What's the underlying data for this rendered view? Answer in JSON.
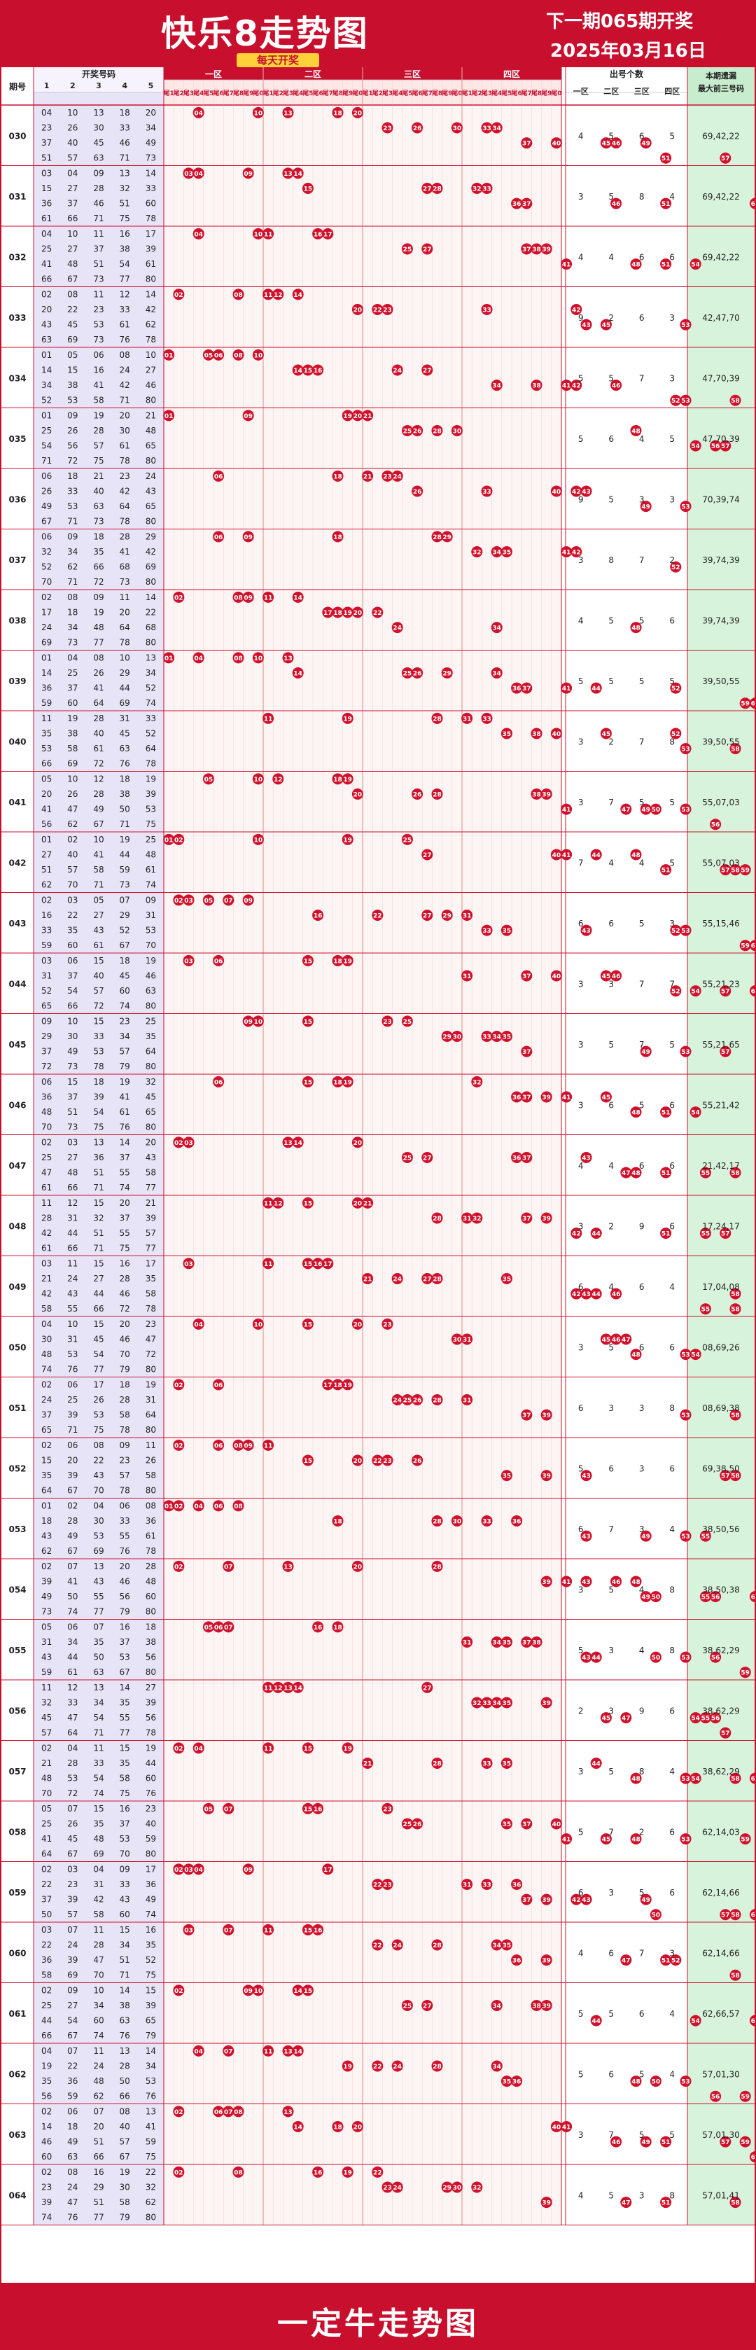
{
  "header": {
    "title": "快乐8走势图",
    "subtitle": "每天开奖",
    "next_draw": "下一期065期开奖",
    "date": "2025年03月16日"
  },
  "footer": {
    "text": "一定牛走势图"
  },
  "table_headers": {
    "issue": "期号",
    "draw_numbers": "开奖号码",
    "draw_cols": [
      "1",
      "2",
      "3",
      "4",
      "5"
    ],
    "zones": [
      "一区",
      "二区",
      "三区",
      "四区"
    ],
    "tails": [
      "尾1",
      "尾2",
      "尾3",
      "尾4",
      "尾5",
      "尾6",
      "尾7",
      "尾8",
      "尾9",
      "尾0"
    ],
    "count": "出号个数",
    "count_cols": [
      "一区",
      "二区",
      "三区",
      "四区"
    ],
    "missing": "本期遗漏最大前三号码"
  },
  "colors": {
    "brand_red": "#c8102e",
    "ball_red": "#d0112b",
    "draw_bg": "#e8e4f8",
    "zone_bg": "#fdf4f4",
    "missing_bg": "#d8f3dc",
    "header_yellow": "#ffd23a"
  },
  "chart_data": {
    "type": "table",
    "rows": [
      {
        "issue": "030",
        "nums": [
          4,
          10,
          13,
          18,
          20,
          23,
          26,
          30,
          33,
          34,
          37,
          40,
          45,
          46,
          49,
          51,
          57,
          63,
          71,
          73
        ],
        "counts": [
          "4",
          "5",
          "6",
          "5"
        ],
        "missing": "69,42,22"
      },
      {
        "issue": "031",
        "nums": [
          3,
          4,
          9,
          13,
          14,
          15,
          27,
          28,
          32,
          33,
          36,
          37,
          46,
          51,
          60,
          61,
          66,
          71,
          75,
          78
        ],
        "counts": [
          "3",
          "5",
          "8",
          "4"
        ],
        "missing": "69,42,22"
      },
      {
        "issue": "032",
        "nums": [
          4,
          10,
          11,
          16,
          17,
          25,
          27,
          37,
          38,
          39,
          41,
          48,
          51,
          54,
          61,
          66,
          67,
          73,
          77,
          80
        ],
        "counts": [
          "4",
          "4",
          "6",
          "6"
        ],
        "missing": "69,42,22"
      },
      {
        "issue": "033",
        "nums": [
          2,
          8,
          11,
          12,
          14,
          20,
          22,
          23,
          33,
          42,
          43,
          45,
          53,
          61,
          62,
          63,
          69,
          73,
          76,
          78
        ],
        "counts": [
          "9",
          "2",
          "6",
          "3"
        ],
        "missing": "42,47,70"
      },
      {
        "issue": "034",
        "nums": [
          1,
          5,
          6,
          8,
          10,
          14,
          15,
          16,
          24,
          27,
          34,
          38,
          41,
          42,
          46,
          52,
          53,
          58,
          71,
          80
        ],
        "counts": [
          "5",
          "5",
          "7",
          "3"
        ],
        "missing": "47,70,39"
      },
      {
        "issue": "035",
        "nums": [
          1,
          9,
          19,
          20,
          21,
          25,
          26,
          28,
          30,
          48,
          54,
          56,
          57,
          61,
          65,
          71,
          72,
          75,
          78,
          80
        ],
        "counts": [
          "5",
          "6",
          "4",
          "5"
        ],
        "missing": "47,70,39"
      },
      {
        "issue": "036",
        "nums": [
          6,
          18,
          21,
          23,
          24,
          26,
          33,
          40,
          42,
          43,
          49,
          53,
          63,
          64,
          65,
          67,
          71,
          73,
          78,
          80
        ],
        "counts": [
          "9",
          "5",
          "3",
          "3"
        ],
        "missing": "70,39,74"
      },
      {
        "issue": "037",
        "nums": [
          6,
          9,
          18,
          28,
          29,
          32,
          34,
          35,
          41,
          42,
          52,
          62,
          66,
          68,
          69,
          70,
          71,
          72,
          73,
          80
        ],
        "counts": [
          "3",
          "8",
          "7",
          "2"
        ],
        "missing": "39,74,39"
      },
      {
        "issue": "038",
        "nums": [
          2,
          8,
          9,
          11,
          14,
          17,
          18,
          19,
          20,
          22,
          24,
          34,
          48,
          64,
          68,
          69,
          73,
          77,
          78,
          80
        ],
        "counts": [
          "4",
          "5",
          "5",
          "6"
        ],
        "missing": "39,74,39"
      },
      {
        "issue": "039",
        "nums": [
          1,
          4,
          8,
          10,
          13,
          14,
          25,
          26,
          29,
          34,
          36,
          37,
          41,
          44,
          52,
          59,
          60,
          64,
          69,
          74
        ],
        "counts": [
          "5",
          "5",
          "5",
          "5"
        ],
        "missing": "39,50,55"
      },
      {
        "issue": "040",
        "nums": [
          11,
          19,
          28,
          31,
          33,
          35,
          38,
          40,
          45,
          52,
          53,
          58,
          61,
          63,
          64,
          66,
          69,
          72,
          76,
          78
        ],
        "counts": [
          "3",
          "2",
          "7",
          "8"
        ],
        "missing": "39,50,55"
      },
      {
        "issue": "041",
        "nums": [
          5,
          10,
          12,
          18,
          19,
          20,
          26,
          28,
          38,
          39,
          41,
          47,
          49,
          50,
          53,
          56,
          62,
          67,
          71,
          75
        ],
        "counts": [
          "3",
          "7",
          "5",
          "5"
        ],
        "missing": "55,07,03"
      },
      {
        "issue": "042",
        "nums": [
          1,
          2,
          10,
          19,
          25,
          27,
          40,
          41,
          44,
          48,
          51,
          57,
          58,
          59,
          61,
          62,
          70,
          71,
          73,
          74
        ],
        "counts": [
          "7",
          "4",
          "4",
          "5"
        ],
        "missing": "55,07,03"
      },
      {
        "issue": "043",
        "nums": [
          2,
          3,
          5,
          7,
          9,
          16,
          22,
          27,
          29,
          31,
          33,
          35,
          43,
          52,
          53,
          59,
          60,
          61,
          67,
          70
        ],
        "counts": [
          "6",
          "6",
          "5",
          "3"
        ],
        "missing": "55,15,46"
      },
      {
        "issue": "044",
        "nums": [
          3,
          6,
          15,
          18,
          19,
          31,
          37,
          40,
          45,
          46,
          52,
          54,
          57,
          60,
          63,
          65,
          66,
          72,
          74,
          80
        ],
        "counts": [
          "3",
          "3",
          "7",
          "7"
        ],
        "missing": "55,21,23"
      },
      {
        "issue": "045",
        "nums": [
          9,
          10,
          15,
          23,
          25,
          29,
          30,
          33,
          34,
          35,
          37,
          49,
          53,
          57,
          64,
          72,
          73,
          78,
          79,
          80
        ],
        "counts": [
          "3",
          "5",
          "7",
          "5"
        ],
        "missing": "55,21,65"
      },
      {
        "issue": "046",
        "nums": [
          6,
          15,
          18,
          19,
          32,
          36,
          37,
          39,
          41,
          45,
          48,
          51,
          54,
          61,
          65,
          70,
          73,
          75,
          76,
          80
        ],
        "counts": [
          "3",
          "6",
          "5",
          "6"
        ],
        "missing": "55,21,42"
      },
      {
        "issue": "047",
        "nums": [
          2,
          3,
          13,
          14,
          20,
          25,
          27,
          36,
          37,
          43,
          47,
          48,
          51,
          55,
          58,
          61,
          66,
          71,
          74,
          77
        ],
        "counts": [
          "4",
          "4",
          "6",
          "6"
        ],
        "missing": "21,42,17"
      },
      {
        "issue": "048",
        "nums": [
          11,
          12,
          15,
          20,
          21,
          28,
          31,
          32,
          37,
          39,
          42,
          44,
          51,
          55,
          57,
          61,
          66,
          71,
          75,
          77
        ],
        "counts": [
          "3",
          "2",
          "9",
          "6"
        ],
        "missing": "17,24,17"
      },
      {
        "issue": "049",
        "nums": [
          3,
          11,
          15,
          16,
          17,
          21,
          24,
          27,
          28,
          35,
          42,
          43,
          44,
          46,
          58,
          58,
          55,
          66,
          72,
          78
        ],
        "counts": [
          "6",
          "4",
          "6",
          "4"
        ],
        "missing": "17,04,08"
      },
      {
        "issue": "050",
        "nums": [
          4,
          10,
          15,
          20,
          23,
          30,
          31,
          45,
          46,
          47,
          48,
          53,
          54,
          70,
          72,
          74,
          76,
          77,
          79,
          80
        ],
        "counts": [
          "3",
          "5",
          "6",
          "6"
        ],
        "missing": "08,69,26"
      },
      {
        "issue": "051",
        "nums": [
          2,
          6,
          17,
          18,
          19,
          24,
          25,
          26,
          28,
          31,
          37,
          39,
          53,
          58,
          64,
          65,
          71,
          75,
          78,
          80
        ],
        "counts": [
          "6",
          "3",
          "3",
          "8"
        ],
        "missing": "08,69,38"
      },
      {
        "issue": "052",
        "nums": [
          2,
          6,
          8,
          9,
          11,
          15,
          20,
          22,
          23,
          26,
          35,
          39,
          43,
          57,
          58,
          64,
          67,
          70,
          78,
          80
        ],
        "counts": [
          "5",
          "6",
          "3",
          "6"
        ],
        "missing": "69,38,50"
      },
      {
        "issue": "053",
        "nums": [
          1,
          2,
          4,
          6,
          8,
          18,
          28,
          30,
          33,
          36,
          43,
          49,
          53,
          55,
          61,
          62,
          67,
          69,
          76,
          78
        ],
        "counts": [
          "6",
          "7",
          "3",
          "4"
        ],
        "missing": "38,50,56"
      },
      {
        "issue": "054",
        "nums": [
          2,
          7,
          13,
          20,
          28,
          39,
          41,
          43,
          46,
          48,
          49,
          50,
          55,
          56,
          60,
          73,
          74,
          77,
          79,
          80
        ],
        "counts": [
          "3",
          "5",
          "4",
          "8"
        ],
        "missing": "38,50,38"
      },
      {
        "issue": "055",
        "nums": [
          5,
          6,
          7,
          16,
          18,
          31,
          34,
          35,
          37,
          38,
          43,
          44,
          50,
          53,
          56,
          59,
          61,
          63,
          67,
          80
        ],
        "counts": [
          "5",
          "3",
          "4",
          "8"
        ],
        "missing": "38,62,29"
      },
      {
        "issue": "056",
        "nums": [
          11,
          12,
          13,
          14,
          27,
          32,
          33,
          34,
          35,
          39,
          45,
          47,
          54,
          55,
          56,
          57,
          64,
          71,
          77,
          78
        ],
        "counts": [
          "2",
          "3",
          "9",
          "6"
        ],
        "missing": "38,62,29"
      },
      {
        "issue": "057",
        "nums": [
          2,
          4,
          11,
          15,
          19,
          21,
          28,
          33,
          35,
          44,
          48,
          53,
          54,
          58,
          60,
          70,
          72,
          74,
          75,
          76
        ],
        "counts": [
          "3",
          "5",
          "8",
          "4"
        ],
        "missing": "38,62,29"
      },
      {
        "issue": "058",
        "nums": [
          5,
          7,
          15,
          16,
          23,
          25,
          26,
          35,
          37,
          40,
          41,
          45,
          48,
          53,
          59,
          64,
          67,
          69,
          70,
          80
        ],
        "counts": [
          "5",
          "7",
          "2",
          "6"
        ],
        "missing": "62,14,03"
      },
      {
        "issue": "059",
        "nums": [
          2,
          3,
          4,
          9,
          17,
          22,
          23,
          31,
          33,
          36,
          37,
          39,
          42,
          43,
          49,
          50,
          57,
          58,
          60,
          74
        ],
        "counts": [
          "6",
          "3",
          "5",
          "6"
        ],
        "missing": "62,14,66"
      },
      {
        "issue": "060",
        "nums": [
          3,
          7,
          11,
          15,
          16,
          22,
          24,
          28,
          34,
          35,
          36,
          39,
          47,
          51,
          52,
          58,
          69,
          70,
          71,
          75
        ],
        "counts": [
          "4",
          "6",
          "7",
          "3"
        ],
        "missing": "62,14,66"
      },
      {
        "issue": "061",
        "nums": [
          2,
          9,
          10,
          14,
          15,
          25,
          27,
          34,
          38,
          39,
          44,
          54,
          60,
          63,
          65,
          66,
          67,
          74,
          76,
          79
        ],
        "counts": [
          "5",
          "5",
          "6",
          "4"
        ],
        "missing": "62,66,57"
      },
      {
        "issue": "062",
        "nums": [
          4,
          7,
          11,
          13,
          14,
          19,
          22,
          24,
          28,
          34,
          35,
          36,
          48,
          50,
          53,
          56,
          59,
          62,
          66,
          76
        ],
        "counts": [
          "5",
          "6",
          "5",
          "4"
        ],
        "missing": "57,01,30"
      },
      {
        "issue": "063",
        "nums": [
          2,
          6,
          7,
          8,
          13,
          14,
          18,
          20,
          40,
          41,
          46,
          49,
          51,
          57,
          59,
          60,
          63,
          66,
          67,
          75
        ],
        "counts": [
          "3",
          "7",
          "5",
          "5"
        ],
        "missing": "57,01,30"
      },
      {
        "issue": "064",
        "nums": [
          2,
          8,
          16,
          19,
          22,
          23,
          24,
          29,
          30,
          32,
          39,
          47,
          51,
          58,
          62,
          74,
          76,
          77,
          79,
          80
        ],
        "counts": [
          "4",
          "5",
          "3",
          "8"
        ],
        "missing": "57,01,41"
      }
    ]
  }
}
